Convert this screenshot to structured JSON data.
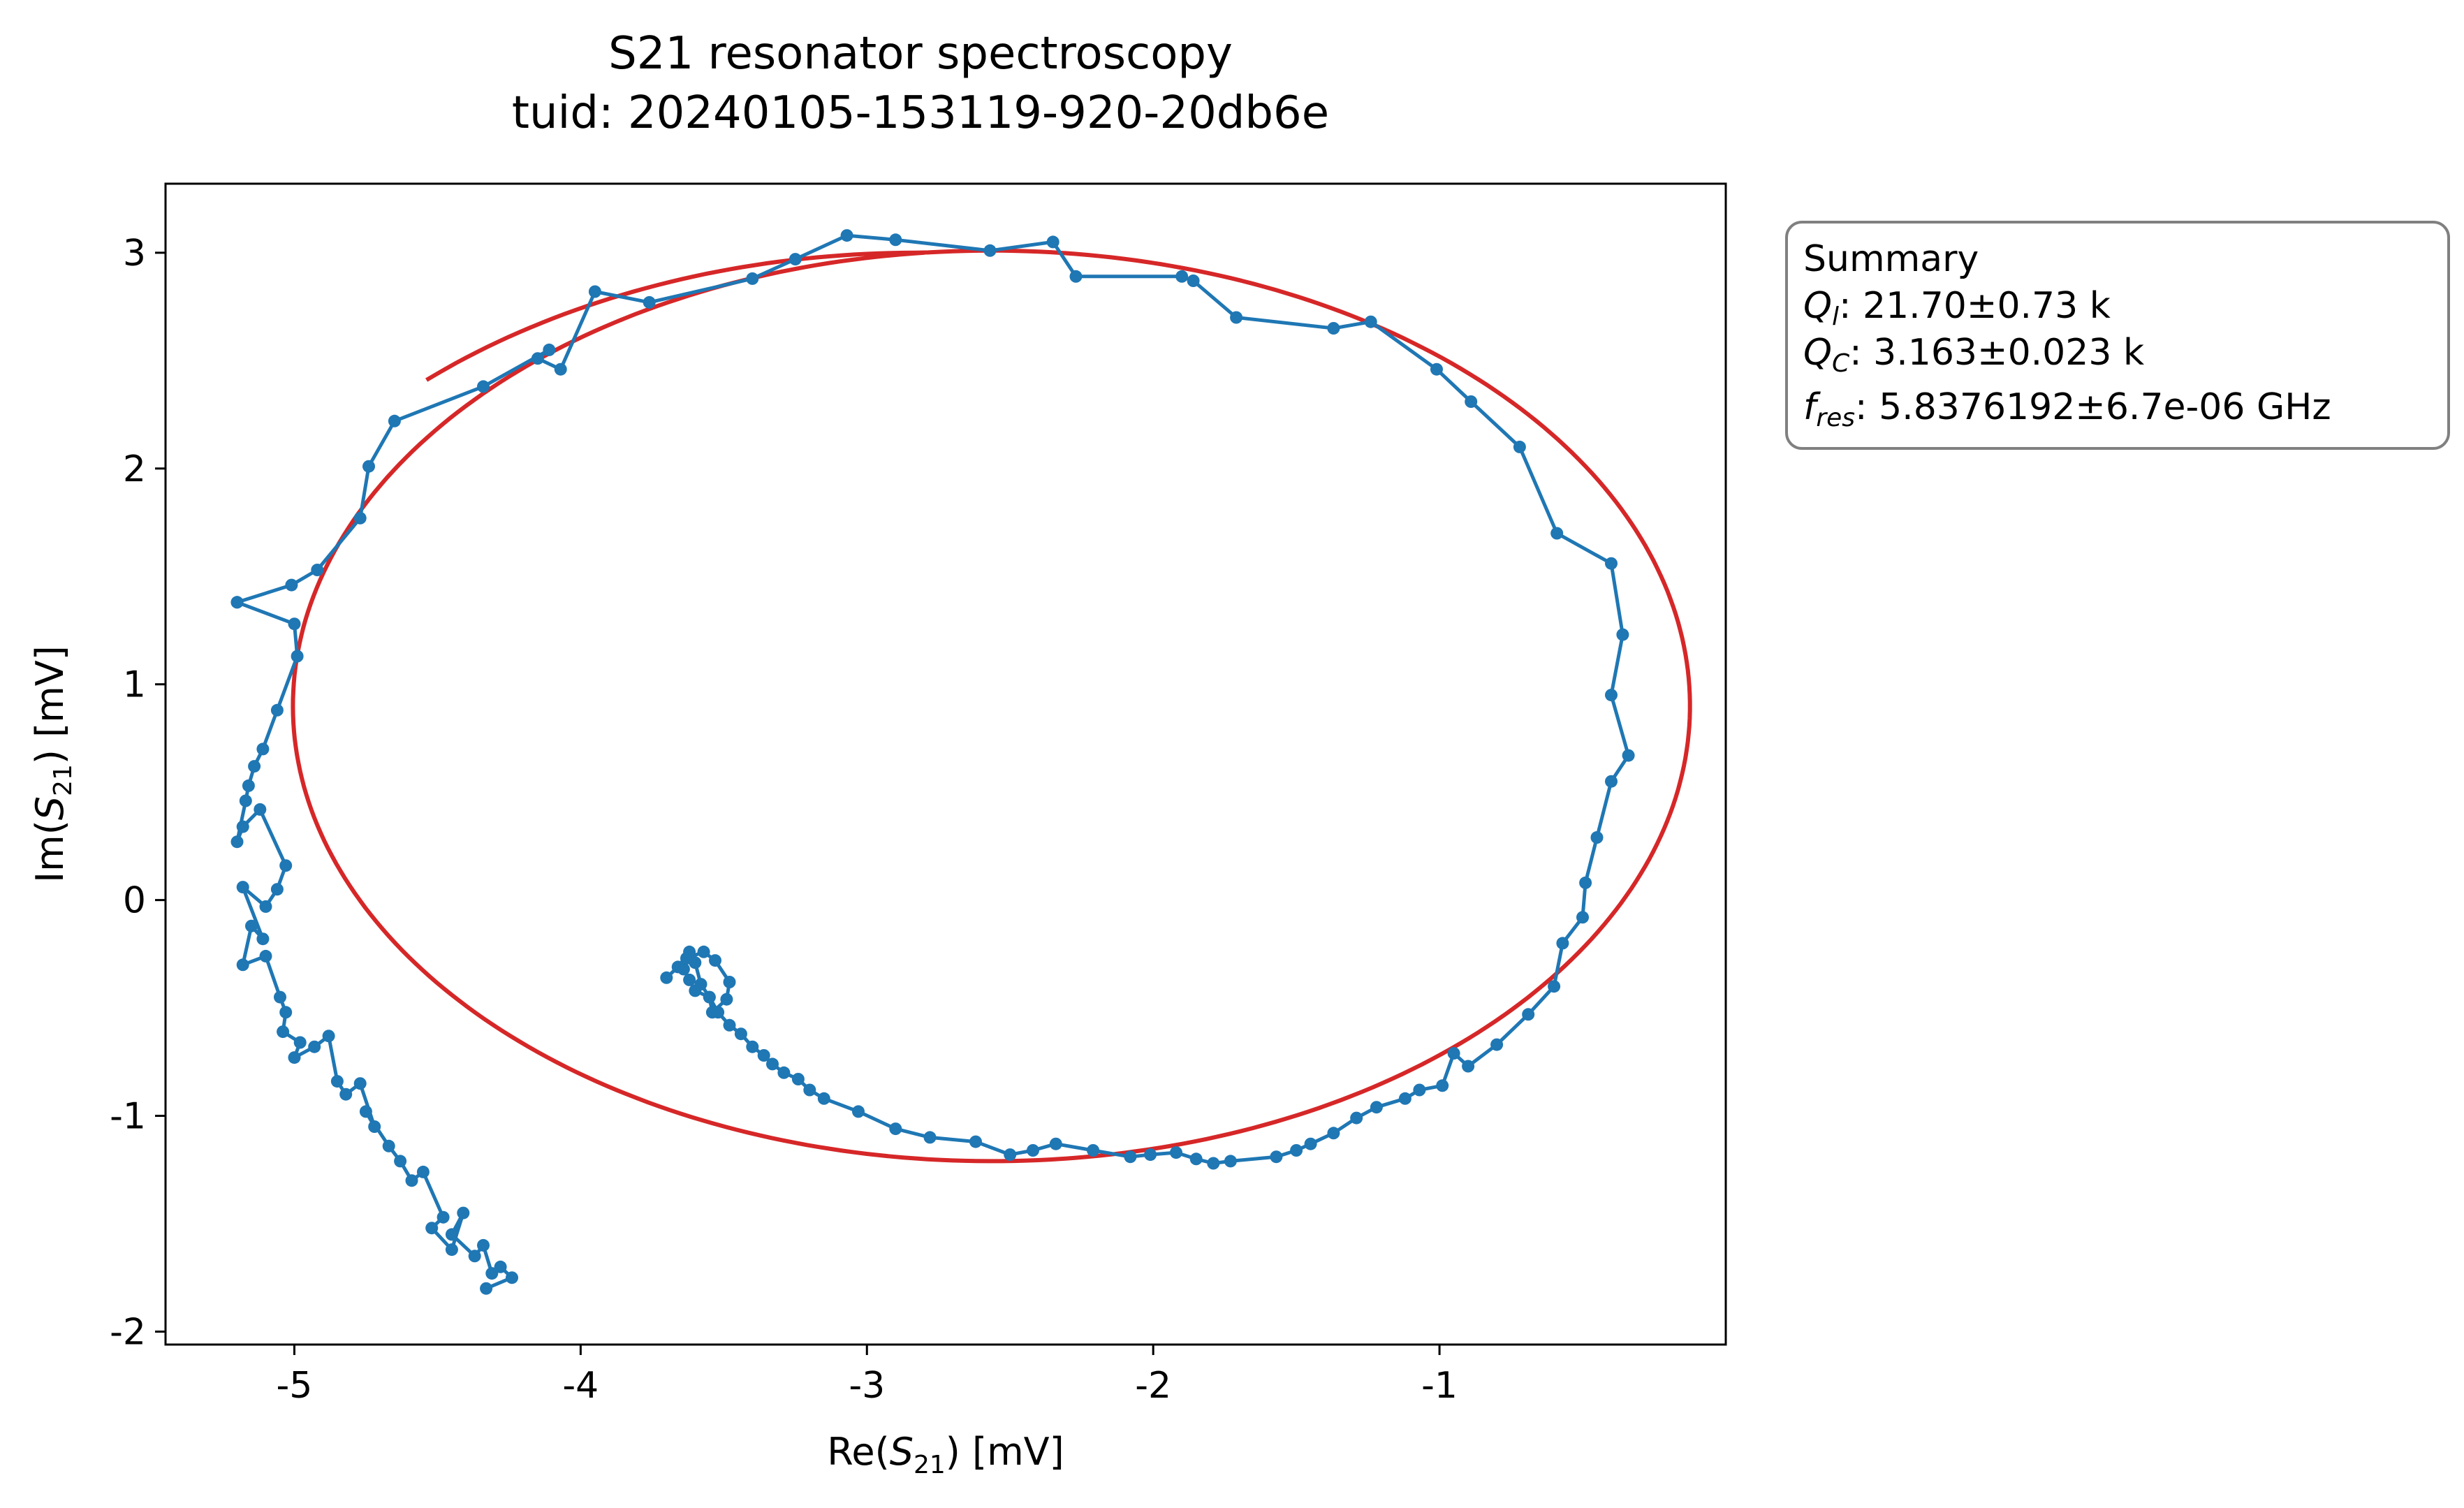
{
  "chart_data": {
    "type": "scatter",
    "title": "S21 resonator spectroscopy",
    "subtitle": "tuid: 20240105-153119-920-20db6e",
    "xlabel": {
      "pre": "Re(",
      "var": "S",
      "sub": "21",
      "post": ") [mV]"
    },
    "ylabel": {
      "pre": "Im(",
      "var": "S",
      "sub": "21",
      "post": ") [mV]"
    },
    "xlim": [
      -5.45,
      0.0
    ],
    "ylim": [
      -2.06,
      3.32
    ],
    "xticks": [
      -5,
      -4,
      -3,
      -2,
      -1
    ],
    "yticks": [
      -2,
      -1,
      0,
      1,
      2,
      3
    ],
    "grid": false,
    "legend": "none",
    "colors": {
      "data": "#1f77b4",
      "fit": "#d62728",
      "box_edge": "#808080"
    },
    "summary": {
      "heading": "Summary",
      "lines": [
        {
          "var": "Q",
          "sub": "l",
          "text": ": 21.70±0.73 k"
        },
        {
          "var": "Q",
          "sub": "C",
          "text": ": 3.163±0.023 k"
        },
        {
          "var": "f",
          "sub": "res",
          "text": ": 5.8376192±6.7e-06 GHz"
        }
      ]
    },
    "series": [
      {
        "kind": "data",
        "x": [
          -5.2,
          -5.01,
          -4.92,
          -4.77,
          -4.74,
          -4.65,
          -4.34,
          -4.11,
          -4.15,
          -4.07,
          -3.95,
          -3.76,
          -3.4,
          -3.25,
          -3.07,
          -2.9,
          -2.57,
          -2.35,
          -2.27,
          -1.9,
          -1.86,
          -1.71,
          -1.37,
          -1.24,
          -1.01,
          -0.89,
          -0.72,
          -0.59,
          -0.4,
          -0.36,
          -0.4,
          -0.34,
          -0.4,
          -0.45,
          -0.49,
          -0.5,
          -0.57,
          -0.6,
          -0.69,
          -0.8,
          -0.9,
          -0.95,
          -0.99,
          -1.07,
          -1.12,
          -1.22,
          -1.29,
          -1.37,
          -1.45,
          -1.5,
          -1.57,
          -1.73,
          -1.79,
          -1.85,
          -1.92,
          -2.01,
          -2.08,
          -2.21,
          -2.34,
          -2.42,
          -2.5,
          -2.62,
          -2.78,
          -2.9,
          -3.03,
          -3.15,
          -3.2,
          -3.24,
          -3.29,
          -3.33,
          -3.36,
          -3.4,
          -3.44,
          -3.48,
          -3.52,
          -3.55,
          -3.6,
          -3.62,
          -3.64,
          -3.63,
          -3.57,
          -3.53,
          -3.48,
          -3.49,
          -3.54,
          -3.55,
          -3.58,
          -3.6,
          -3.62,
          -3.66,
          -3.7
        ],
        "y": [
          1.38,
          1.46,
          1.53,
          1.77,
          2.01,
          2.22,
          2.38,
          2.55,
          2.51,
          2.46,
          2.82,
          2.77,
          2.88,
          2.97,
          3.08,
          3.06,
          3.01,
          3.05,
          2.89,
          2.89,
          2.87,
          2.7,
          2.65,
          2.68,
          2.46,
          2.31,
          2.1,
          1.7,
          1.56,
          1.23,
          0.95,
          0.67,
          0.55,
          0.29,
          0.08,
          -0.08,
          -0.2,
          -0.4,
          -0.53,
          -0.67,
          -0.77,
          -0.71,
          -0.86,
          -0.88,
          -0.92,
          -0.96,
          -1.01,
          -1.08,
          -1.13,
          -1.16,
          -1.19,
          -1.21,
          -1.22,
          -1.2,
          -1.17,
          -1.18,
          -1.19,
          -1.16,
          -1.13,
          -1.16,
          -1.18,
          -1.12,
          -1.1,
          -1.06,
          -0.98,
          -0.92,
          -0.88,
          -0.83,
          -0.8,
          -0.76,
          -0.72,
          -0.68,
          -0.62,
          -0.58,
          -0.52,
          -0.45,
          -0.42,
          -0.37,
          -0.32,
          -0.27,
          -0.24,
          -0.28,
          -0.38,
          -0.46,
          -0.52,
          -0.45,
          -0.39,
          -0.29,
          -0.24,
          -0.31,
          -0.36
        ]
      },
      {
        "kind": "data",
        "x": [
          -5.2,
          -5.0,
          -4.99,
          -5.06,
          -5.11,
          -5.14,
          -5.16,
          -5.17,
          -5.2,
          -5.18,
          -5.12,
          -5.03,
          -5.06,
          -5.1,
          -5.18,
          -5.11,
          -5.15,
          -5.18,
          -5.1,
          -5.05,
          -5.03,
          -5.04,
          -4.98,
          -5.0,
          -4.93,
          -4.88,
          -4.85,
          -4.82,
          -4.77,
          -4.72,
          -4.75,
          -4.67,
          -4.63,
          -4.59,
          -4.55,
          -4.48,
          -4.52,
          -4.45,
          -4.41,
          -4.45,
          -4.37,
          -4.34,
          -4.31,
          -4.28,
          -4.24,
          -4.33
        ],
        "y": [
          1.38,
          1.28,
          1.13,
          0.88,
          0.7,
          0.62,
          0.53,
          0.46,
          0.27,
          0.34,
          0.42,
          0.16,
          0.05,
          -0.03,
          0.06,
          -0.18,
          -0.12,
          -0.3,
          -0.26,
          -0.45,
          -0.52,
          -0.61,
          -0.66,
          -0.73,
          -0.68,
          -0.63,
          -0.84,
          -0.9,
          -0.85,
          -1.05,
          -0.98,
          -1.14,
          -1.21,
          -1.3,
          -1.26,
          -1.47,
          -1.52,
          -1.62,
          -1.45,
          -1.55,
          -1.65,
          -1.6,
          -1.73,
          -1.7,
          -1.75,
          -1.8
        ]
      },
      {
        "kind": "fit",
        "center": [
          -2.565,
          0.9
        ],
        "radius": [
          2.44,
          2.11
        ],
        "start_deg": 95.5,
        "sweep_deg": 403,
        "end_radius_scale": 1.08
      }
    ]
  }
}
